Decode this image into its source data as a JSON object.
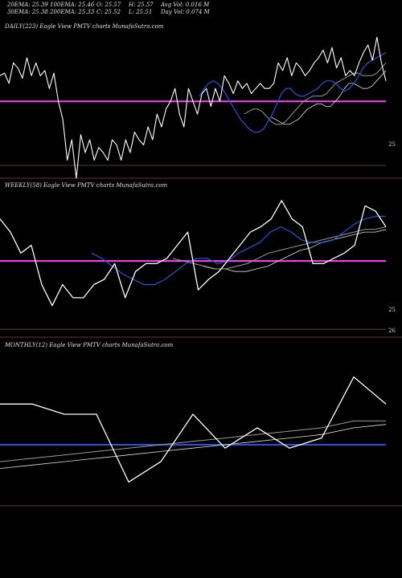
{
  "header": {
    "row1": [
      "20EMA: 25.39",
      "100EMA: 25.46",
      "O: 25.57",
      "H: 25.57",
      "Avg Vol: 0.016  M"
    ],
    "row2": [
      "30EMA: 25.38",
      "200EMA: 25.33",
      "C: 25.52",
      "L: 25.51",
      "Day Vol: 0.074  M"
    ]
  },
  "colors": {
    "price": "#ffffff",
    "ema_blue": "#2255dd",
    "ema_grey": "#9a9a9a",
    "ema_light": "#e0e0e0",
    "magenta": "#ff40ff",
    "orange": "#8a4a1e",
    "background": "#000000"
  },
  "chart_data": [
    {
      "type": "line",
      "title": "DAILY(223) Eagle  View  PMTV charts MunafaSutra.com",
      "tick_labels": [
        "25"
      ],
      "series": [
        {
          "values": [
            25.55,
            25.56,
            25.52,
            25.6,
            25.58,
            25.54,
            25.62,
            25.55,
            25.6,
            25.55,
            25.57,
            25.5,
            25.56,
            25.45,
            25.38,
            25.22,
            25.3,
            25.15,
            25.32,
            25.25,
            25.3,
            25.22,
            25.27,
            25.25,
            25.22,
            25.3,
            25.28,
            25.22,
            25.3,
            25.25,
            25.33,
            25.3,
            25.28,
            25.35,
            25.3,
            25.4,
            25.35,
            25.42,
            25.45,
            25.5,
            25.4,
            25.35,
            25.5,
            25.45,
            25.4,
            25.48,
            25.5,
            25.43,
            25.5,
            25.45,
            25.55,
            25.52,
            25.48,
            25.53,
            25.5,
            25.52,
            25.48,
            25.5,
            25.52,
            25.5,
            25.5,
            25.52,
            25.6,
            25.57,
            25.62,
            25.55,
            25.6,
            25.58,
            25.55,
            25.57,
            25.6,
            25.62,
            25.65,
            25.6,
            25.66,
            25.58,
            25.62,
            25.55,
            25.57,
            25.55,
            25.6,
            25.64,
            25.67,
            25.61,
            25.7,
            25.6,
            25.53
          ]
        },
        {
          "values": [
            25.47,
            25.5,
            25.52,
            25.53,
            25.52,
            25.5,
            25.47,
            25.44,
            25.41,
            25.38,
            25.36,
            25.34,
            25.33,
            25.33,
            25.34,
            25.37,
            25.4,
            25.44,
            25.48,
            25.5,
            25.5,
            25.48,
            25.47,
            25.47,
            25.48,
            25.49,
            25.5,
            25.52,
            25.53,
            25.53,
            25.52,
            25.5,
            25.49,
            25.5,
            25.52,
            25.55,
            25.58,
            25.6,
            25.61,
            25.62,
            25.63,
            25.64
          ]
        },
        {
          "values": [
            25.4,
            25.41,
            25.42,
            25.42,
            25.41,
            25.39,
            25.37,
            25.36,
            25.36,
            25.37,
            25.39,
            25.41,
            25.43,
            25.45,
            25.46,
            25.47,
            25.47,
            25.47,
            25.48,
            25.5,
            25.52,
            25.53,
            25.54,
            25.55,
            25.56,
            25.56,
            25.55,
            25.55,
            25.55,
            25.56,
            25.58,
            25.6
          ]
        },
        {
          "values": [
            25.39,
            25.38,
            25.37,
            25.36,
            25.36,
            25.37,
            25.38,
            25.4,
            25.42,
            25.43,
            25.44,
            25.44,
            25.43,
            25.43,
            25.45,
            25.47,
            25.5,
            25.52,
            25.52,
            25.51,
            25.5,
            25.5,
            25.51,
            25.53,
            25.55,
            25.57
          ]
        }
      ],
      "hlines": [
        25.45,
        25.2
      ],
      "ylim": [
        25.15,
        25.72
      ]
    },
    {
      "type": "line",
      "title": "WEEKLY(58) Eagle  View  PMTV charts MunafaSutra.com",
      "tick_labels": [
        "25",
        "26"
      ],
      "series": [
        {
          "values": [
            25.55,
            25.5,
            25.42,
            25.45,
            25.3,
            25.22,
            25.3,
            25.25,
            25.25,
            25.3,
            25.32,
            25.38,
            25.25,
            25.35,
            25.38,
            25.38,
            25.4,
            25.45,
            25.5,
            25.28,
            25.32,
            25.35,
            25.4,
            25.45,
            25.5,
            25.52,
            25.55,
            25.62,
            25.55,
            25.52,
            25.38,
            25.38,
            25.4,
            25.42,
            25.45,
            25.6,
            25.58,
            25.52
          ]
        },
        {
          "values": [
            25.42,
            25.4,
            25.37,
            25.34,
            25.32,
            25.3,
            25.3,
            25.32,
            25.35,
            25.38,
            25.4,
            25.4,
            25.38,
            25.39,
            25.42,
            25.44,
            25.46,
            25.5,
            25.52,
            25.5,
            25.47,
            25.46,
            25.46,
            25.47,
            25.5,
            25.53,
            25.55,
            25.56,
            25.56
          ]
        },
        {
          "values": [
            25.4,
            25.39,
            25.38,
            25.37,
            25.36,
            25.36,
            25.37,
            25.38,
            25.4,
            25.42,
            25.43,
            25.44,
            25.45,
            25.46,
            25.47,
            25.48,
            25.49,
            25.5,
            25.51,
            25.51,
            25.52
          ]
        },
        {
          "values": [
            25.37,
            25.36,
            25.36,
            25.35,
            25.35,
            25.36,
            25.37,
            25.39,
            25.41,
            25.43,
            25.44,
            25.46,
            25.47,
            25.48,
            25.49,
            25.5,
            25.5,
            25.51
          ]
        }
      ],
      "hlines": [
        25.39,
        25.13
      ],
      "ylim": [
        25.1,
        25.65
      ]
    },
    {
      "type": "line",
      "title": "MONTHLY(12) Eagle  View  PMTV charts MunafaSutra.com",
      "tick_labels": [],
      "series": [
        {
          "values": [
            25.55,
            25.55,
            25.52,
            25.52,
            25.32,
            25.38,
            25.52,
            25.42,
            25.48,
            25.42,
            25.45,
            25.63,
            25.55
          ]
        },
        {
          "values": [
            25.38,
            25.39,
            25.4,
            25.41,
            25.42,
            25.43,
            25.44,
            25.45,
            25.46,
            25.47,
            25.48,
            25.5,
            25.5
          ]
        },
        {
          "values": [
            25.36,
            25.37,
            25.38,
            25.39,
            25.4,
            25.41,
            25.42,
            25.43,
            25.44,
            25.45,
            25.46,
            25.48,
            25.49
          ]
        }
      ],
      "hlines": [
        25.43
      ],
      "ylim": [
        25.25,
        25.7
      ]
    }
  ]
}
